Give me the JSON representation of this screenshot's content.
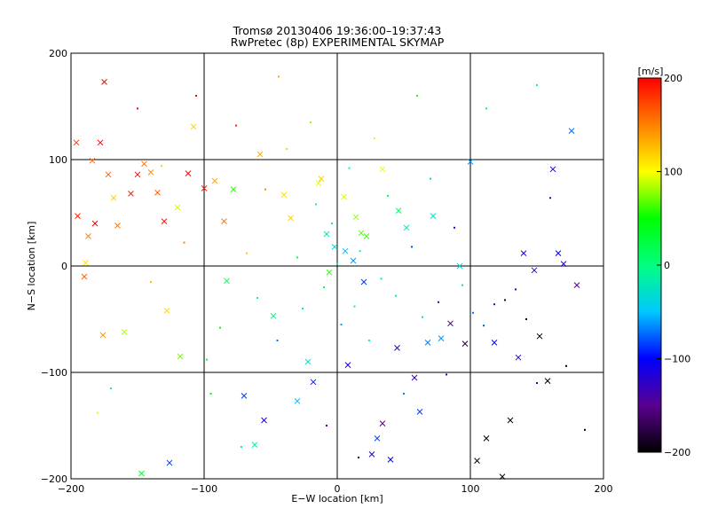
{
  "chart_data": {
    "type": "scatter",
    "title": "Tromsø 20130406 19:36:00–19:37:43",
    "subtitle": "RwPretec (8p) EXPERIMENTAL SKYMAP",
    "xlabel": "E−W location [km]",
    "ylabel": "N−S location [km]",
    "xlim": [
      -200,
      200
    ],
    "ylim": [
      -200,
      200
    ],
    "x_ticks": [
      -200,
      -100,
      0,
      100,
      200
    ],
    "y_ticks": [
      -200,
      -100,
      0,
      100,
      200
    ],
    "x_tick_labels": [
      "−200",
      "−100",
      "0",
      "100",
      "200"
    ],
    "y_tick_labels": [
      "−200",
      "−100",
      "0",
      "100",
      "200"
    ],
    "grid": true,
    "colorbar": {
      "label": "[m/s]",
      "range": [
        -200,
        200
      ],
      "ticks": [
        200,
        100,
        0,
        -100,
        -200
      ],
      "tick_labels": [
        "200",
        "100",
        "0",
        "−100",
        "−200"
      ],
      "colormap": [
        "#000000",
        "#5a0090",
        "#0000ff",
        "#00c8ff",
        "#00ff80",
        "#00ff00",
        "#ffff00",
        "#ff8000",
        "#ff0000"
      ]
    },
    "marker_legend": {
      "small_dot": "small point marker",
      "cross": "cross marker"
    },
    "series": [
      {
        "marker": "cross",
        "points": [
          [
            -196,
            116
          ],
          [
            -195,
            47
          ],
          [
            -190,
            -10
          ],
          [
            -189,
            3
          ],
          [
            -187,
            28
          ],
          [
            -184,
            99
          ],
          [
            -182,
            40
          ],
          [
            -178,
            116
          ],
          [
            -176,
            -65
          ],
          [
            -175,
            173
          ],
          [
            -172,
            86
          ],
          [
            -168,
            64
          ],
          [
            -165,
            38
          ],
          [
            -160,
            -62
          ],
          [
            -155,
            68
          ],
          [
            -150,
            86
          ],
          [
            -147,
            -195
          ],
          [
            -145,
            96
          ],
          [
            -140,
            88
          ],
          [
            -135,
            69
          ],
          [
            -130,
            42
          ],
          [
            -128,
            -42
          ],
          [
            -126,
            -185
          ],
          [
            -120,
            55
          ],
          [
            -118,
            -85
          ],
          [
            -112,
            87
          ],
          [
            -108,
            131
          ],
          [
            -100,
            73
          ],
          [
            -92,
            80
          ],
          [
            -85,
            42
          ],
          [
            -83,
            -14
          ],
          [
            -78,
            72
          ],
          [
            -70,
            -122
          ],
          [
            -62,
            -168
          ],
          [
            -58,
            105
          ],
          [
            -55,
            -145
          ],
          [
            -48,
            -47
          ],
          [
            -40,
            67
          ],
          [
            -35,
            45
          ],
          [
            -22,
            -90
          ],
          [
            -18,
            -109
          ],
          [
            -12,
            82
          ],
          [
            -8,
            30
          ],
          [
            5,
            65
          ],
          [
            8,
            -93
          ],
          [
            14,
            46
          ],
          [
            18,
            31
          ],
          [
            22,
            28
          ],
          [
            26,
            -177
          ],
          [
            30,
            -162
          ],
          [
            34,
            -148
          ],
          [
            40,
            -182
          ],
          [
            45,
            -77
          ],
          [
            52,
            36
          ],
          [
            58,
            -105
          ],
          [
            62,
            -137
          ],
          [
            68,
            -72
          ],
          [
            72,
            47
          ],
          [
            78,
            -68
          ],
          [
            85,
            -54
          ],
          [
            92,
            0
          ],
          [
            96,
            -73
          ],
          [
            100,
            98
          ],
          [
            105,
            -183
          ],
          [
            112,
            -162
          ],
          [
            118,
            -72
          ],
          [
            124,
            -198
          ],
          [
            130,
            -145
          ],
          [
            136,
            -86
          ],
          [
            140,
            12
          ],
          [
            148,
            -4
          ],
          [
            152,
            -66
          ],
          [
            158,
            -108
          ],
          [
            162,
            91
          ],
          [
            166,
            12
          ],
          [
            170,
            2
          ],
          [
            176,
            127
          ],
          [
            180,
            -18
          ],
          [
            -30,
            -127
          ],
          [
            -2,
            18
          ],
          [
            6,
            14
          ],
          [
            12,
            5
          ],
          [
            -14,
            78
          ],
          [
            20,
            -15
          ],
          [
            -6,
            -6
          ],
          [
            34,
            91
          ],
          [
            46,
            52
          ]
        ]
      },
      {
        "marker": "small_dot",
        "points": [
          [
            -180,
            -138
          ],
          [
            -150,
            148
          ],
          [
            -132,
            94
          ],
          [
            -106,
            160
          ],
          [
            -95,
            -120
          ],
          [
            -88,
            -58
          ],
          [
            -76,
            132
          ],
          [
            -68,
            12
          ],
          [
            -60,
            -30
          ],
          [
            -54,
            72
          ],
          [
            -45,
            -70
          ],
          [
            -38,
            110
          ],
          [
            -30,
            8
          ],
          [
            -26,
            -40
          ],
          [
            -20,
            135
          ],
          [
            -16,
            58
          ],
          [
            -10,
            -20
          ],
          [
            -4,
            40
          ],
          [
            0,
            2
          ],
          [
            3,
            -55
          ],
          [
            9,
            92
          ],
          [
            13,
            -38
          ],
          [
            17,
            14
          ],
          [
            24,
            -70
          ],
          [
            28,
            120
          ],
          [
            33,
            -12
          ],
          [
            38,
            66
          ],
          [
            44,
            -28
          ],
          [
            50,
            -120
          ],
          [
            56,
            18
          ],
          [
            64,
            -48
          ],
          [
            70,
            82
          ],
          [
            76,
            -34
          ],
          [
            82,
            -102
          ],
          [
            88,
            36
          ],
          [
            94,
            -18
          ],
          [
            102,
            -44
          ],
          [
            110,
            -56
          ],
          [
            118,
            -36
          ],
          [
            126,
            -32
          ],
          [
            134,
            -22
          ],
          [
            142,
            -50
          ],
          [
            150,
            -110
          ],
          [
            160,
            64
          ],
          [
            172,
            -94
          ],
          [
            186,
            -154
          ],
          [
            -170,
            -115
          ],
          [
            -140,
            -15
          ],
          [
            -115,
            22
          ],
          [
            -98,
            -88
          ],
          [
            -72,
            -170
          ],
          [
            -44,
            178
          ],
          [
            -8,
            -150
          ],
          [
            16,
            -180
          ],
          [
            60,
            160
          ],
          [
            112,
            148
          ],
          [
            150,
            170
          ]
        ]
      }
    ]
  }
}
